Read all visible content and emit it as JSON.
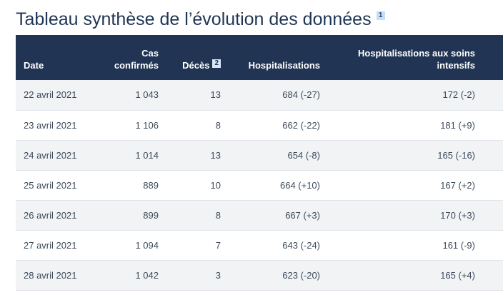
{
  "title": "Tableau synthèse de l’évolution des données",
  "title_note": "1",
  "headers": {
    "date": "Date",
    "cas_line1": "Cas",
    "cas_line2": "confirmés",
    "deces": "Décès",
    "deces_note": "2",
    "hospitalisations": "Hospitalisations",
    "soins_line1": "Hospitalisations aux soins",
    "soins_line2": "intensifs"
  },
  "rows": [
    {
      "date": "22 avril 2021",
      "cas": "1 043",
      "deces": "13",
      "hospitalisations": "684 (-27)",
      "soins": "172 (-2)"
    },
    {
      "date": "23 avril 2021",
      "cas": "1 106",
      "deces": "8",
      "hospitalisations": "662 (-22)",
      "soins": "181 (+9)"
    },
    {
      "date": "24 avril 2021",
      "cas": "1 014",
      "deces": "13",
      "hospitalisations": "654 (-8)",
      "soins": "165 (-16)"
    },
    {
      "date": "25 avril 2021",
      "cas": "889",
      "deces": "10",
      "hospitalisations": "664 (+10)",
      "soins": "167 (+2)"
    },
    {
      "date": "26 avril 2021",
      "cas": "899",
      "deces": "8",
      "hospitalisations": "667 (+3)",
      "soins": "170 (+3)"
    },
    {
      "date": "27 avril 2021",
      "cas": "1 094",
      "deces": "7",
      "hospitalisations": "643 (-24)",
      "soins": "161 (-9)"
    },
    {
      "date": "28 avril 2021",
      "cas": "1 042",
      "deces": "3",
      "hospitalisations": "623 (-20)",
      "soins": "165 (+4)"
    }
  ],
  "colors": {
    "header_bg": "#213453",
    "stripe_bg": "#f1f3f5",
    "title_color": "#1f3554"
  }
}
